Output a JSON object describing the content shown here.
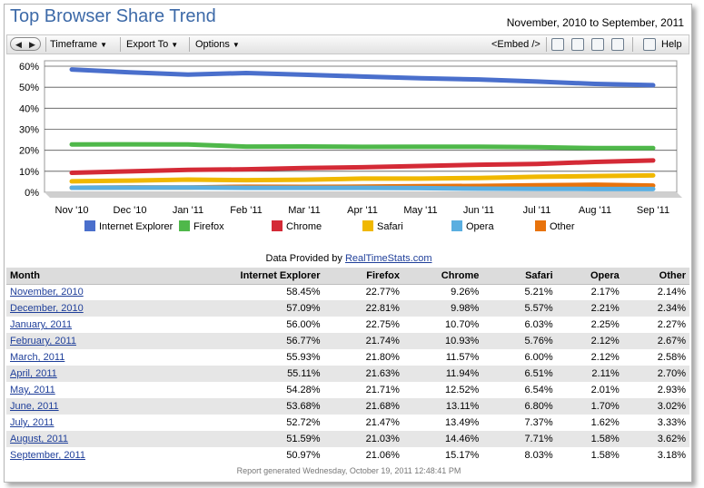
{
  "header": {
    "title": "Top Browser Share Trend",
    "date_range": "November, 2010 to September, 2011"
  },
  "toolbar": {
    "timeframe": "Timeframe",
    "export": "Export To",
    "options": "Options",
    "embed": "<Embed />",
    "help": "Help"
  },
  "provided": {
    "prefix": "Data Provided by ",
    "link": "RealTimeStats.com"
  },
  "chart_data": {
    "type": "line",
    "categories": [
      "Nov '10",
      "Dec '10",
      "Jan '11",
      "Feb '11",
      "Mar '11",
      "Apr '11",
      "May '11",
      "Jun '11",
      "Jul '11",
      "Aug '11",
      "Sep '11"
    ],
    "ylim": [
      0,
      60
    ],
    "yticks": [
      "0%",
      "10%",
      "20%",
      "30%",
      "40%",
      "50%",
      "60%"
    ],
    "series": [
      {
        "name": "Internet Explorer",
        "color": "#4a6fcc",
        "values": [
          58.45,
          57.09,
          56.0,
          56.77,
          55.93,
          55.11,
          54.28,
          53.68,
          52.72,
          51.59,
          50.97
        ]
      },
      {
        "name": "Firefox",
        "color": "#4fb84a",
        "values": [
          22.77,
          22.81,
          22.75,
          21.74,
          21.8,
          21.63,
          21.71,
          21.68,
          21.47,
          21.03,
          21.06
        ]
      },
      {
        "name": "Chrome",
        "color": "#d42a36",
        "values": [
          9.26,
          9.98,
          10.7,
          10.93,
          11.57,
          11.94,
          12.52,
          13.11,
          13.49,
          14.46,
          15.17
        ]
      },
      {
        "name": "Safari",
        "color": "#f0b800",
        "values": [
          5.21,
          5.57,
          6.03,
          5.76,
          6.0,
          6.51,
          6.54,
          6.8,
          7.37,
          7.71,
          8.03
        ]
      },
      {
        "name": "Opera",
        "color": "#5aaee0",
        "values": [
          2.17,
          2.21,
          2.25,
          2.12,
          2.12,
          2.11,
          2.01,
          1.7,
          1.62,
          1.58,
          1.58
        ]
      },
      {
        "name": "Other",
        "color": "#e8730c",
        "values": [
          2.14,
          2.34,
          2.27,
          2.67,
          2.58,
          2.7,
          2.93,
          3.02,
          3.33,
          3.62,
          3.18
        ]
      }
    ]
  },
  "table": {
    "headers": [
      "Month",
      "Internet Explorer",
      "Firefox",
      "Chrome",
      "Safari",
      "Opera",
      "Other"
    ],
    "rows": [
      [
        "November, 2010",
        "58.45%",
        "22.77%",
        "9.26%",
        "5.21%",
        "2.17%",
        "2.14%"
      ],
      [
        "December, 2010",
        "57.09%",
        "22.81%",
        "9.98%",
        "5.57%",
        "2.21%",
        "2.34%"
      ],
      [
        "January, 2011",
        "56.00%",
        "22.75%",
        "10.70%",
        "6.03%",
        "2.25%",
        "2.27%"
      ],
      [
        "February, 2011",
        "56.77%",
        "21.74%",
        "10.93%",
        "5.76%",
        "2.12%",
        "2.67%"
      ],
      [
        "March, 2011",
        "55.93%",
        "21.80%",
        "11.57%",
        "6.00%",
        "2.12%",
        "2.58%"
      ],
      [
        "April, 2011",
        "55.11%",
        "21.63%",
        "11.94%",
        "6.51%",
        "2.11%",
        "2.70%"
      ],
      [
        "May, 2011",
        "54.28%",
        "21.71%",
        "12.52%",
        "6.54%",
        "2.01%",
        "2.93%"
      ],
      [
        "June, 2011",
        "53.68%",
        "21.68%",
        "13.11%",
        "6.80%",
        "1.70%",
        "3.02%"
      ],
      [
        "July, 2011",
        "52.72%",
        "21.47%",
        "13.49%",
        "7.37%",
        "1.62%",
        "3.33%"
      ],
      [
        "August, 2011",
        "51.59%",
        "21.03%",
        "14.46%",
        "7.71%",
        "1.58%",
        "3.62%"
      ],
      [
        "September, 2011",
        "50.97%",
        "21.06%",
        "15.17%",
        "8.03%",
        "1.58%",
        "3.18%"
      ]
    ]
  },
  "footer": "Report generated Wednesday, October 19, 2011 12:48:41 PM"
}
